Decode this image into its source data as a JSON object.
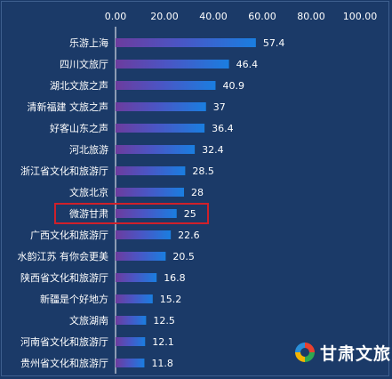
{
  "chart_data": {
    "type": "bar",
    "orientation": "horizontal",
    "categories": [
      "乐游上海",
      "四川文旅厅",
      "湖北文旅之声",
      "清新福建 文旅之声",
      "好客山东之声",
      "河北旅游",
      "浙江省文化和旅游厅",
      "文旅北京",
      "微游甘肃",
      "广西文化和旅游厅",
      "水韵江苏 有你会更美",
      "陕西省文化和旅游厅",
      "新疆是个好地方",
      "文旅湖南",
      "河南省文化和旅游厅",
      "贵州省文化和旅游厅"
    ],
    "values": [
      57.4,
      46.4,
      40.9,
      37,
      36.4,
      32.4,
      28.5,
      28,
      25,
      22.6,
      20.5,
      16.8,
      15.2,
      12.5,
      12.1,
      11.8
    ],
    "value_labels": [
      "57.4",
      "46.4",
      "40.9",
      "37",
      "36.4",
      "32.4",
      "28.5",
      "28",
      "25",
      "22.6",
      "20.5",
      "16.8",
      "15.2",
      "12.5",
      "12.1",
      "11.8"
    ],
    "xlim": [
      0,
      100
    ],
    "x_ticks": [
      "0.00",
      "20.00",
      "40.00",
      "60.00",
      "80.00",
      "100.00"
    ],
    "x_axis_position": "top",
    "grid": false,
    "highlighted_category": "微游甘肃",
    "highlight_color": "#d0202a",
    "bar_gradient": [
      "#6c3c9e",
      "#1a7ee0"
    ],
    "background": "#1b3a68"
  },
  "logo": {
    "text": "甘肃文旅",
    "name": "gansu-wenlv-logo"
  }
}
